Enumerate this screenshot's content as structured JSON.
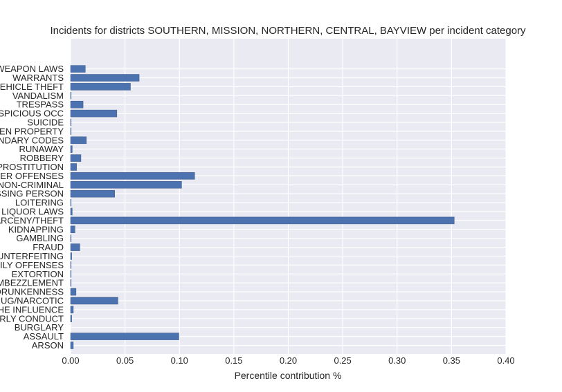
{
  "chart_data": {
    "type": "bar",
    "orientation": "horizontal",
    "title": "Incidents for districts SOUTHERN, MISSION, NORTHERN, CENTRAL, BAYVIEW per incident category",
    "xlabel": "Percentile contribution %",
    "ylabel": "",
    "xlim": [
      0.0,
      0.4
    ],
    "xticks": [
      "0.00",
      "0.05",
      "0.10",
      "0.15",
      "0.20",
      "0.25",
      "0.30",
      "0.35",
      "0.40"
    ],
    "grid": true,
    "background_color": "#eaeaf2",
    "bar_color": "#4c72b0",
    "categories": [
      "ARSON",
      "ASSAULT",
      "BURGLARY",
      "DISORDERLY CONDUCT",
      "DRIVING UNDER THE INFLUENCE",
      "DRUG/NARCOTIC",
      "DRUNKENNESS",
      "EMBEZZLEMENT",
      "EXTORTION",
      "FAMILY OFFENSES",
      "FORGERY/COUNTERFEITING",
      "FRAUD",
      "GAMBLING",
      "KIDNAPPING",
      "LARCENY/THEFT",
      "LIQUOR LAWS",
      "LOITERING",
      "MISSING PERSON",
      "NON-CRIMINAL",
      "OTHER OFFENSES",
      "PROSTITUTION",
      "ROBBERY",
      "RUNAWAY",
      "SECONDARY CODES",
      "STOLEN PROPERTY",
      "SUICIDE",
      "SUSPICIOUS OCC",
      "TRESPASS",
      "VANDALISM",
      "VEHICLE THEFT",
      "WARRANTS",
      "WEAPON LAWS"
    ],
    "values": [
      0.0025,
      0.0995,
      0.0,
      0.001,
      0.0025,
      0.0435,
      0.005,
      0.0002,
      0.0002,
      0.0002,
      0.001,
      0.0085,
      0.0002,
      0.004,
      0.3525,
      0.0015,
      0.0002,
      0.0405,
      0.102,
      0.114,
      0.0055,
      0.0095,
      0.0015,
      0.0145,
      0.0002,
      0.0002,
      0.0425,
      0.0115,
      0.0005,
      0.055,
      0.063,
      0.0135
    ]
  }
}
